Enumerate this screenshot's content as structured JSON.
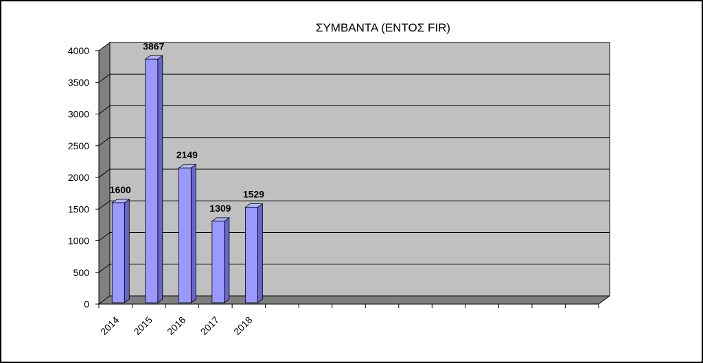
{
  "chart_data": {
    "type": "bar",
    "title": "ΣΥΜΒΑΝΤΑ (ΕΝΤΟΣ FIR)",
    "categories": [
      "2014",
      "2015",
      "2016",
      "2017",
      "2018"
    ],
    "values": [
      1600,
      3867,
      2149,
      1309,
      1529
    ],
    "data_labels": [
      "1600",
      "3867",
      "2149",
      "1309",
      "1529"
    ],
    "ylim": [
      0,
      4000
    ],
    "yticks": [
      "0",
      "500",
      "1000",
      "1500",
      "2000",
      "2500",
      "3000",
      "3500",
      "4000"
    ],
    "grid": true,
    "legend": "none",
    "three_d": true,
    "colors": {
      "bar_front": "#9999ff",
      "bar_side": "#6666cc",
      "bar_top": "#b3b3ff",
      "wall": "#c0c0c0",
      "side_wall": "#808080",
      "floor": "#808080"
    }
  }
}
